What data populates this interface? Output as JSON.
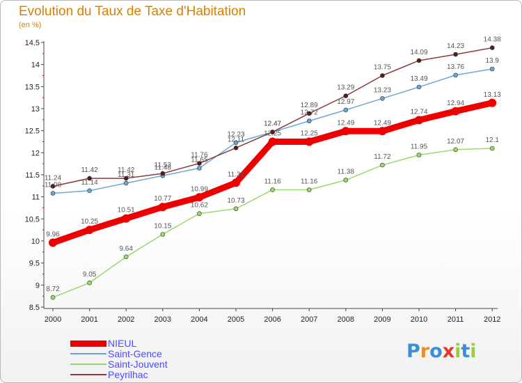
{
  "title": "Evolution du Taux de Taxe d'Habitation",
  "unit": "(en %)",
  "logo": "Proxiti",
  "chart_data": {
    "type": "line",
    "title": "Evolution du Taux de Taxe d'Habitation",
    "ylabel": "(en %)",
    "xlabel": "",
    "x": [
      "2000",
      "2001",
      "2002",
      "2003",
      "2004",
      "2005",
      "2006",
      "2007",
      "2008",
      "2009",
      "2010",
      "2011",
      "2012"
    ],
    "ylim": [
      8.5,
      14.5
    ],
    "yticks": [
      "8.5",
      "9",
      "9.5",
      "10",
      "10.5",
      "11",
      "11.5",
      "12",
      "12.5",
      "13",
      "13.5",
      "14",
      "14.5"
    ],
    "grid": false,
    "legend_position": "bottom-left",
    "series": [
      {
        "name": "NIEUL",
        "color": "#ee0000",
        "values": [
          9.96,
          10.25,
          10.51,
          10.77,
          10.99,
          11.32,
          12.25,
          12.25,
          12.49,
          12.49,
          12.74,
          12.94,
          13.13
        ],
        "labels": [
          "9.96",
          "10.25",
          "10.51",
          "10.77",
          "10.99",
          "11.32",
          "12.25",
          "12.25",
          "12.49",
          "12.49",
          "12.74",
          "12.94",
          "13.13"
        ]
      },
      {
        "name": "Saint-Gence",
        "color": "#6ca6d6",
        "values": [
          11.08,
          11.14,
          11.31,
          11.48,
          11.65,
          12.23,
          12.47,
          12.72,
          12.97,
          13.23,
          13.49,
          13.76,
          13.9
        ],
        "labels": [
          "11.08",
          "11.14",
          "11.31",
          "11.48",
          "11.65",
          "12.23",
          "12.47",
          "12.72",
          "12.97",
          "13.23",
          "13.49",
          "13.76",
          "13.9"
        ]
      },
      {
        "name": "Saint-Jouvent",
        "color": "#99d96b",
        "values": [
          8.72,
          9.05,
          9.64,
          10.15,
          10.62,
          10.73,
          11.16,
          11.16,
          11.38,
          11.72,
          11.95,
          12.07,
          12.1
        ],
        "labels": [
          "8.72",
          "9.05",
          "9.64",
          "10.15",
          "10.62",
          "10.73",
          "11.16",
          "11.16",
          "11.38",
          "11.72",
          "11.95",
          "12.07",
          "12.1"
        ]
      },
      {
        "name": "Peyrilhac",
        "color": "#8a3a3a",
        "values": [
          11.24,
          11.42,
          11.42,
          11.53,
          11.76,
          12.11,
          12.47,
          12.89,
          13.29,
          13.75,
          14.09,
          14.23,
          14.38
        ],
        "labels": [
          "11.24",
          "11.42",
          "11.42",
          "11.53",
          "11.76",
          "12.11",
          "12.47",
          "12.89",
          "13.29",
          "13.75",
          "14.09",
          "14.23",
          "14.38"
        ]
      }
    ]
  }
}
